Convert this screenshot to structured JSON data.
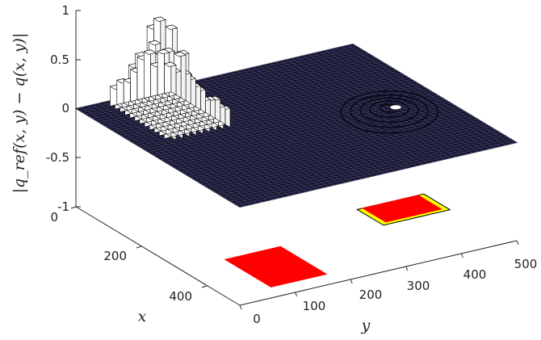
{
  "chart_data": {
    "type": "surface",
    "zlabel": "|q_ref(x, y) − q(x, y)|",
    "xlabel": "x",
    "ylabel": "y",
    "xlim": [
      0,
      500
    ],
    "ylim": [
      0,
      500
    ],
    "zlim": [
      -1,
      1
    ],
    "x_ticks": [
      "0",
      "200",
      "400"
    ],
    "y_ticks": [
      "0",
      "100",
      "200",
      "300",
      "400",
      "500"
    ],
    "z_ticks": [
      "-1",
      "-0.5",
      "0",
      "0.5",
      "1"
    ],
    "surface": {
      "level": 0,
      "color": "#171735"
    },
    "bar_cluster": {
      "x_range": [
        20,
        200
      ],
      "y_range": [
        50,
        160
      ],
      "max_value": 0.9,
      "color": "#ffffff"
    },
    "small_feature": {
      "x": 280,
      "y": 400,
      "max_value": 0.15
    },
    "floor_patches": [
      {
        "name": "",
        "x_range": [
          320,
          460
        ],
        "y_range": [
          80,
          180
        ],
        "color": "#ff0000"
      },
      {
        "name": "",
        "x_range": [
          250,
          330
        ],
        "y_range": [
          360,
          480
        ],
        "color": "#ffff00"
      },
      {
        "name": "",
        "x_range": [
          250,
          320
        ],
        "y_range": [
          370,
          470
        ],
        "color": "#ff0000"
      }
    ],
    "grid": false
  },
  "style": {
    "surface_edge": "#6a6a80",
    "red": "#ff0000",
    "yellow": "#ffff00",
    "dark_red": "#6b0000",
    "bar_edge": "#000000",
    "bar_face": "#ffffff"
  }
}
